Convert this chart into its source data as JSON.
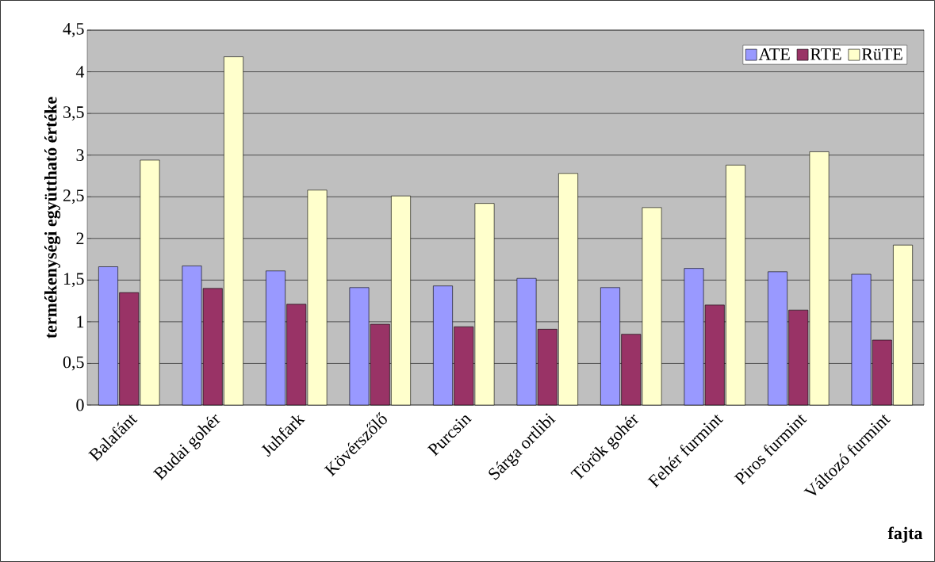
{
  "chart_data": {
    "type": "bar",
    "ylabel": "termékenységi együttható értéke",
    "xlabel": "fajta",
    "categories": [
      "Balafánt",
      "Budai gohér",
      "Juhfark",
      "Kövérszőlő",
      "Purcsin",
      "Sárga ortlibi",
      "Török gohér",
      "Fehér furmint",
      "Piros furmint",
      "Változó furmint"
    ],
    "series": [
      {
        "name": "ATE",
        "color": "#9999ff",
        "values": [
          1.66,
          1.67,
          1.61,
          1.41,
          1.43,
          1.52,
          1.41,
          1.64,
          1.6,
          1.57
        ]
      },
      {
        "name": "RTE",
        "color": "#993366",
        "values": [
          1.35,
          1.4,
          1.21,
          0.97,
          0.94,
          0.91,
          0.85,
          1.2,
          1.14,
          0.78
        ]
      },
      {
        "name": "RüTE",
        "color": "#ffffcc",
        "values": [
          2.94,
          4.18,
          2.58,
          2.51,
          2.42,
          2.78,
          2.37,
          2.88,
          3.04,
          1.92
        ]
      }
    ],
    "ylim": [
      0,
      4.5
    ],
    "yticks": [
      0,
      {
        "value": 0.5,
        "label": "0,5"
      },
      1,
      {
        "value": 1.5,
        "label": "1,5"
      },
      2,
      {
        "value": 2.5,
        "label": "2,5"
      },
      3,
      {
        "value": 3.5,
        "label": "3,5"
      },
      4,
      {
        "value": 4.5,
        "label": "4,5"
      }
    ],
    "grid": "y",
    "legend": "top right"
  }
}
